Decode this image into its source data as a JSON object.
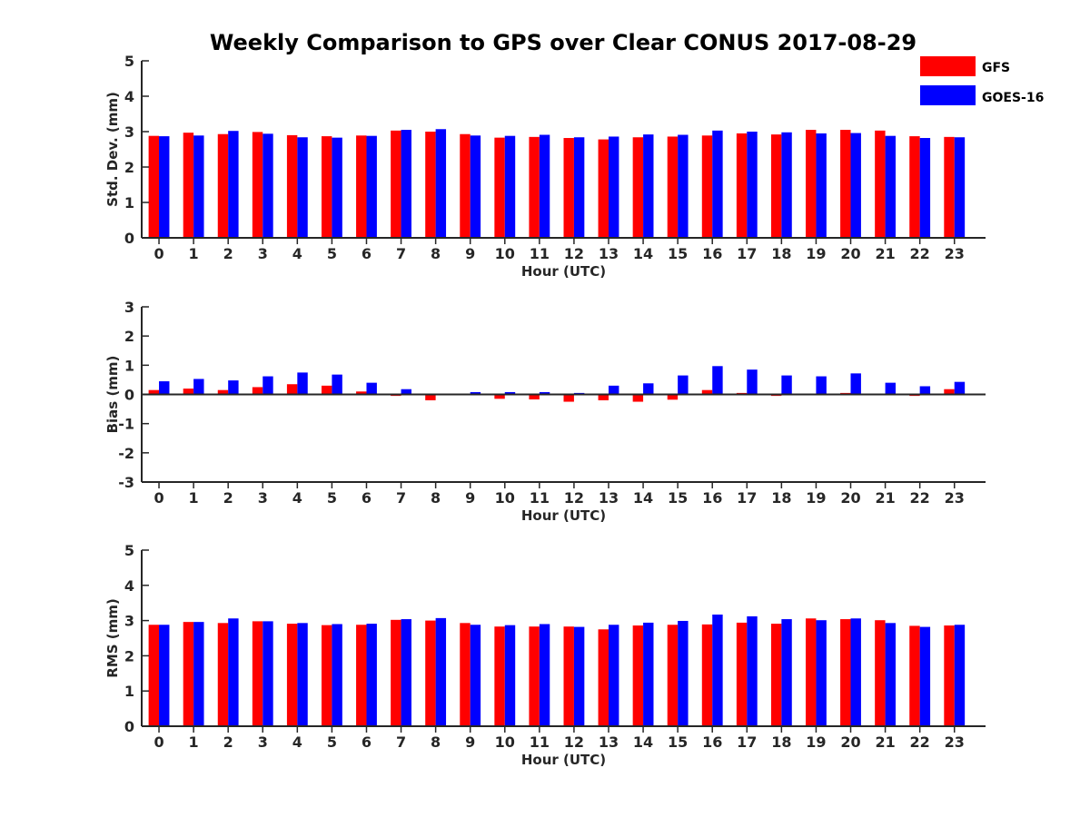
{
  "title": "Weekly Comparison to GPS over Clear CONUS 2017-08-29",
  "legend": [
    {
      "label": "GFS",
      "color": "#ff0000"
    },
    {
      "label": "GOES-16",
      "color": "#0000ff"
    }
  ],
  "colors": {
    "gfs": "#ff0000",
    "goes16": "#0000ff",
    "axis": "#262626"
  },
  "chart_data": [
    {
      "type": "bar",
      "title": "Weekly Comparison to GPS over Clear CONUS 2017-08-29",
      "xlabel": "Hour (UTC)",
      "ylabel": "Std. Dev. (mm)",
      "ylim": [
        0,
        5
      ],
      "yticks": [
        0,
        1,
        2,
        3,
        4,
        5
      ],
      "categories": [
        "0",
        "1",
        "2",
        "3",
        "4",
        "5",
        "6",
        "7",
        "8",
        "9",
        "10",
        "11",
        "12",
        "13",
        "14",
        "15",
        "16",
        "17",
        "18",
        "19",
        "20",
        "21",
        "22",
        "23"
      ],
      "series": [
        {
          "name": "GFS",
          "color": "#ff0000",
          "values": [
            2.88,
            2.97,
            2.93,
            2.99,
            2.9,
            2.87,
            2.89,
            3.03,
            3.0,
            2.93,
            2.83,
            2.85,
            2.82,
            2.78,
            2.84,
            2.86,
            2.89,
            2.95,
            2.92,
            3.05,
            3.05,
            3.03,
            2.87,
            2.85
          ]
        },
        {
          "name": "GOES-16",
          "color": "#0000ff",
          "values": [
            2.87,
            2.89,
            3.02,
            2.94,
            2.84,
            2.83,
            2.88,
            3.05,
            3.07,
            2.89,
            2.88,
            2.91,
            2.84,
            2.86,
            2.92,
            2.91,
            3.03,
            3.0,
            2.98,
            2.95,
            2.96,
            2.88,
            2.82,
            2.84
          ]
        }
      ],
      "grid": false,
      "legend_position": "top-right"
    },
    {
      "type": "bar",
      "xlabel": "Hour (UTC)",
      "ylabel": "Bias (mm)",
      "ylim": [
        -3,
        3
      ],
      "yticks": [
        -3,
        -2,
        -1,
        0,
        1,
        2,
        3
      ],
      "categories": [
        "0",
        "1",
        "2",
        "3",
        "4",
        "5",
        "6",
        "7",
        "8",
        "9",
        "10",
        "11",
        "12",
        "13",
        "14",
        "15",
        "16",
        "17",
        "18",
        "19",
        "20",
        "21",
        "22",
        "23"
      ],
      "series": [
        {
          "name": "GFS",
          "color": "#ff0000",
          "values": [
            0.15,
            0.2,
            0.15,
            0.25,
            0.35,
            0.3,
            0.1,
            -0.05,
            -0.2,
            -0.03,
            -0.15,
            -0.17,
            -0.25,
            -0.2,
            -0.25,
            -0.18,
            0.15,
            0.05,
            -0.05,
            0.0,
            0.05,
            0.0,
            -0.05,
            0.18
          ]
        },
        {
          "name": "GOES-16",
          "color": "#0000ff",
          "values": [
            0.45,
            0.53,
            0.48,
            0.62,
            0.75,
            0.68,
            0.4,
            0.18,
            0.0,
            0.08,
            0.08,
            0.08,
            0.05,
            0.3,
            0.38,
            0.65,
            0.97,
            0.85,
            0.65,
            0.62,
            0.72,
            0.4,
            0.28,
            0.43
          ]
        }
      ],
      "grid": false
    },
    {
      "type": "bar",
      "xlabel": "Hour (UTC)",
      "ylabel": "RMS (mm)",
      "ylim": [
        0,
        5
      ],
      "yticks": [
        0,
        1,
        2,
        3,
        4,
        5
      ],
      "categories": [
        "0",
        "1",
        "2",
        "3",
        "4",
        "5",
        "6",
        "7",
        "8",
        "9",
        "10",
        "11",
        "12",
        "13",
        "14",
        "15",
        "16",
        "17",
        "18",
        "19",
        "20",
        "21",
        "22",
        "23"
      ],
      "series": [
        {
          "name": "GFS",
          "color": "#ff0000",
          "values": [
            2.88,
            2.96,
            2.93,
            2.98,
            2.91,
            2.87,
            2.88,
            3.02,
            3.0,
            2.93,
            2.83,
            2.83,
            2.83,
            2.75,
            2.86,
            2.88,
            2.89,
            2.94,
            2.91,
            3.06,
            3.04,
            3.01,
            2.85,
            2.86
          ]
        },
        {
          "name": "GOES-16",
          "color": "#0000ff",
          "values": [
            2.88,
            2.96,
            3.06,
            2.98,
            2.93,
            2.9,
            2.91,
            3.04,
            3.07,
            2.88,
            2.87,
            2.9,
            2.82,
            2.88,
            2.94,
            2.99,
            3.17,
            3.12,
            3.04,
            3.01,
            3.06,
            2.93,
            2.82,
            2.88
          ]
        }
      ],
      "grid": false
    }
  ]
}
